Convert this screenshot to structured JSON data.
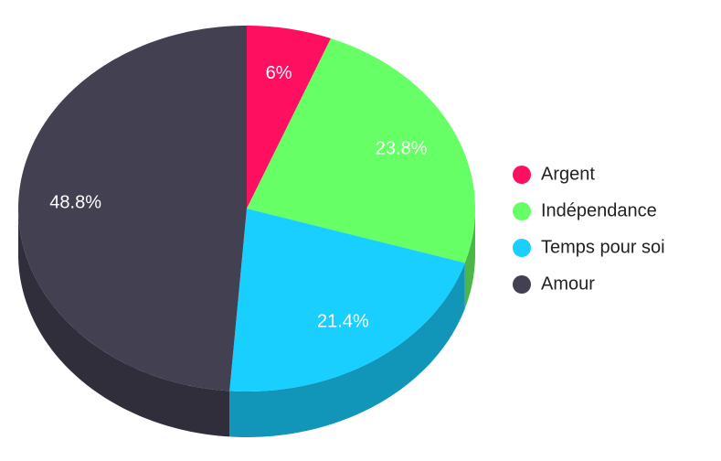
{
  "chart_data": {
    "type": "pie",
    "categories": [
      "Argent",
      "Indépendance",
      "Temps pour soi",
      "Amour"
    ],
    "values": [
      6,
      23.8,
      21.4,
      48.8
    ],
    "value_labels": [
      "6%",
      "23.8%",
      "21.4%",
      "48.8%"
    ],
    "colors": [
      "#ff0f60",
      "#66ff66",
      "#18cfff",
      "#434052"
    ],
    "legend": "right"
  }
}
